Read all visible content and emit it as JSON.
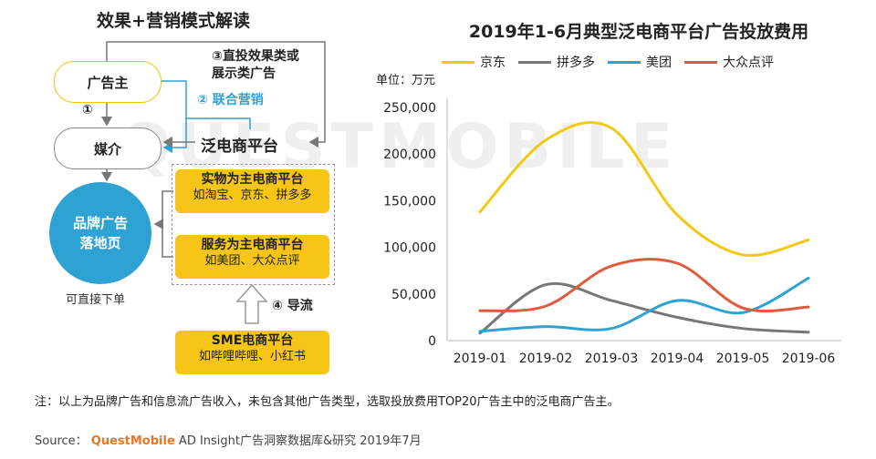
{
  "watermark": "QUESTMOBILE",
  "diagram": {
    "title": "效果+营销模式解读",
    "advertiser": "广告主",
    "media": "媒介",
    "landing_line1": "品牌广告",
    "landing_line2": "落地页",
    "direct_order": "可直接下单",
    "step1": "①",
    "step3_line1": "③直投效果类或",
    "step3_line2": "展示类广告",
    "step2": "② 联合营销",
    "platform": "泛电商平台",
    "physical_title": "实物为主电商平台",
    "physical_examples": "如淘宝、京东、拼多多",
    "service_title": "服务为主电商平台",
    "service_examples": "如美团、大众点评",
    "step4": "④ 导流",
    "sme_title": "SME电商平台",
    "sme_examples": "如哔哩哔哩、小红书",
    "colors": {
      "yellow": "#f7c418",
      "blue": "#2fa2d4",
      "gray": "#888888"
    }
  },
  "chart_data": {
    "type": "line",
    "title": "2019年1-6月典型泛电商平台广告投放费用",
    "unit_label": "单位：万元",
    "categories": [
      "2019-01",
      "2019-02",
      "2019-03",
      "2019-04",
      "2019-05",
      "2019-06"
    ],
    "y_ticks": [
      "0",
      "50,000",
      "100,000",
      "150,000",
      "200,000",
      "250,000"
    ],
    "ylim": [
      0,
      250000
    ],
    "smooth": true,
    "grid": false,
    "legend_position": "top",
    "series": [
      {
        "name": "京东",
        "color": "#f2c811",
        "values": [
          138000,
          215000,
          228000,
          135000,
          92000,
          108000
        ]
      },
      {
        "name": "拼多多",
        "color": "#777777",
        "values": [
          8000,
          60000,
          43000,
          25000,
          13000,
          9000
        ]
      },
      {
        "name": "美团",
        "color": "#2fa2d4",
        "values": [
          10000,
          15000,
          13000,
          43000,
          30000,
          67000
        ]
      },
      {
        "name": "大众点评",
        "color": "#e05a3c",
        "values": [
          32000,
          37000,
          80000,
          83000,
          35000,
          36000
        ]
      }
    ]
  },
  "note": "注：以上为品牌广告和信息流广告收入，未包含其他广告类型，选取投放费用TOP20广告主中的泛电商广告主。",
  "source": {
    "prefix": "Source：",
    "brand": "QuestMobile",
    "suffix": "AD Insight广告洞察数据库&研究 2019年7月"
  }
}
